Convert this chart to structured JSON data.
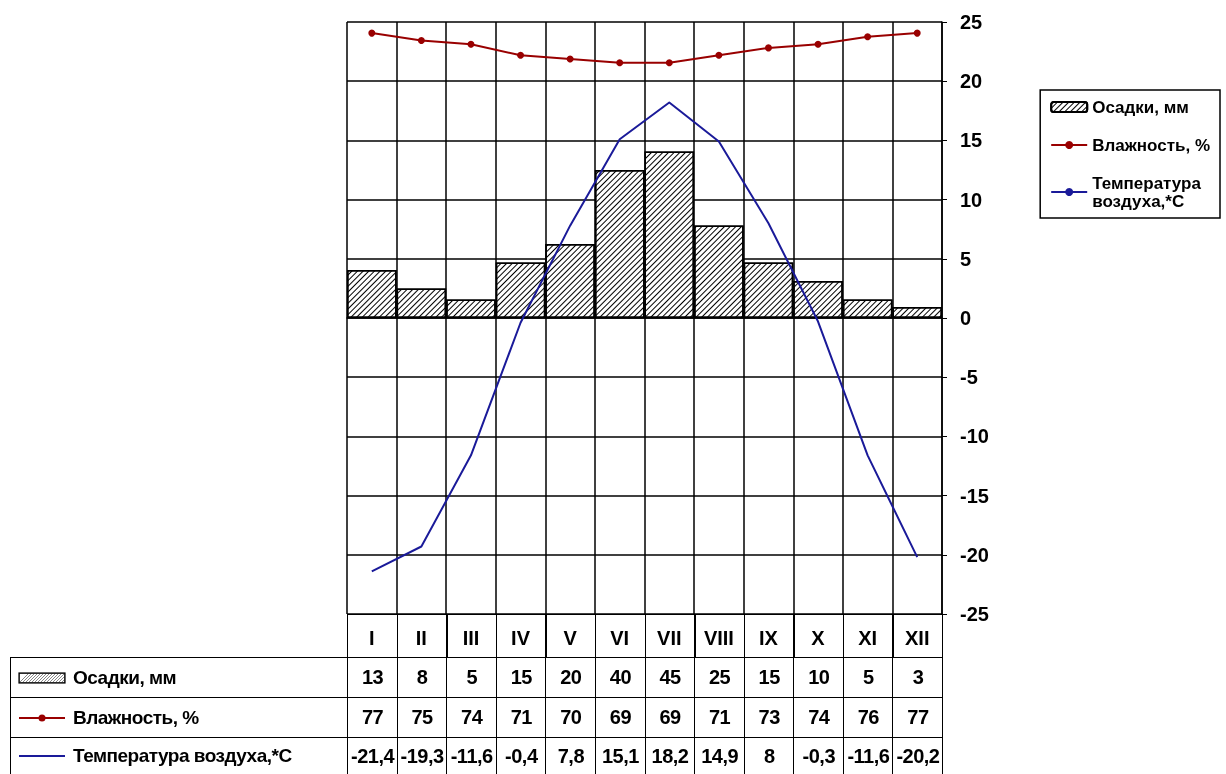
{
  "chart_data": {
    "type": "bar",
    "categories": [
      "I",
      "II",
      "III",
      "IV",
      "V",
      "VI",
      "VII",
      "VIII",
      "IX",
      "X",
      "XI",
      "XII"
    ],
    "series": [
      {
        "name": "Осадки, мм",
        "color": "#ffffff",
        "axis": "y2",
        "values": [
          13,
          8,
          5,
          15,
          20,
          40,
          45,
          25,
          15,
          10,
          5,
          3
        ]
      },
      {
        "name": "Влажность, %",
        "type": "line",
        "color": "#990000",
        "axis": "y2",
        "marker": "circle",
        "values": [
          77,
          75,
          74,
          71,
          70,
          69,
          69,
          71,
          73,
          74,
          76,
          77
        ]
      },
      {
        "name": "Температура воздуха,*С",
        "type": "line",
        "color": "#1a1a99",
        "marker": "none",
        "values": [
          -21.4,
          -19.3,
          -11.6,
          -0.4,
          7.8,
          15.1,
          18.2,
          14.9,
          8,
          -0.3,
          -11.6,
          -20.2
        ],
        "value_labels": [
          "-21,4",
          "-19,3",
          "-11,6",
          "-0,4",
          "7,8",
          "15,1",
          "18,2",
          "14,9",
          "8",
          "-0,3",
          "-11,6",
          "-20,2"
        ]
      }
    ],
    "ylim": [
      -25,
      25
    ],
    "yticks": [
      -25,
      -20,
      -15,
      -10,
      -5,
      0,
      5,
      10,
      15,
      20,
      25
    ],
    "y2lim": [
      -80,
      80
    ],
    "grid": true,
    "legend": "right",
    "data_labels": true
  }
}
